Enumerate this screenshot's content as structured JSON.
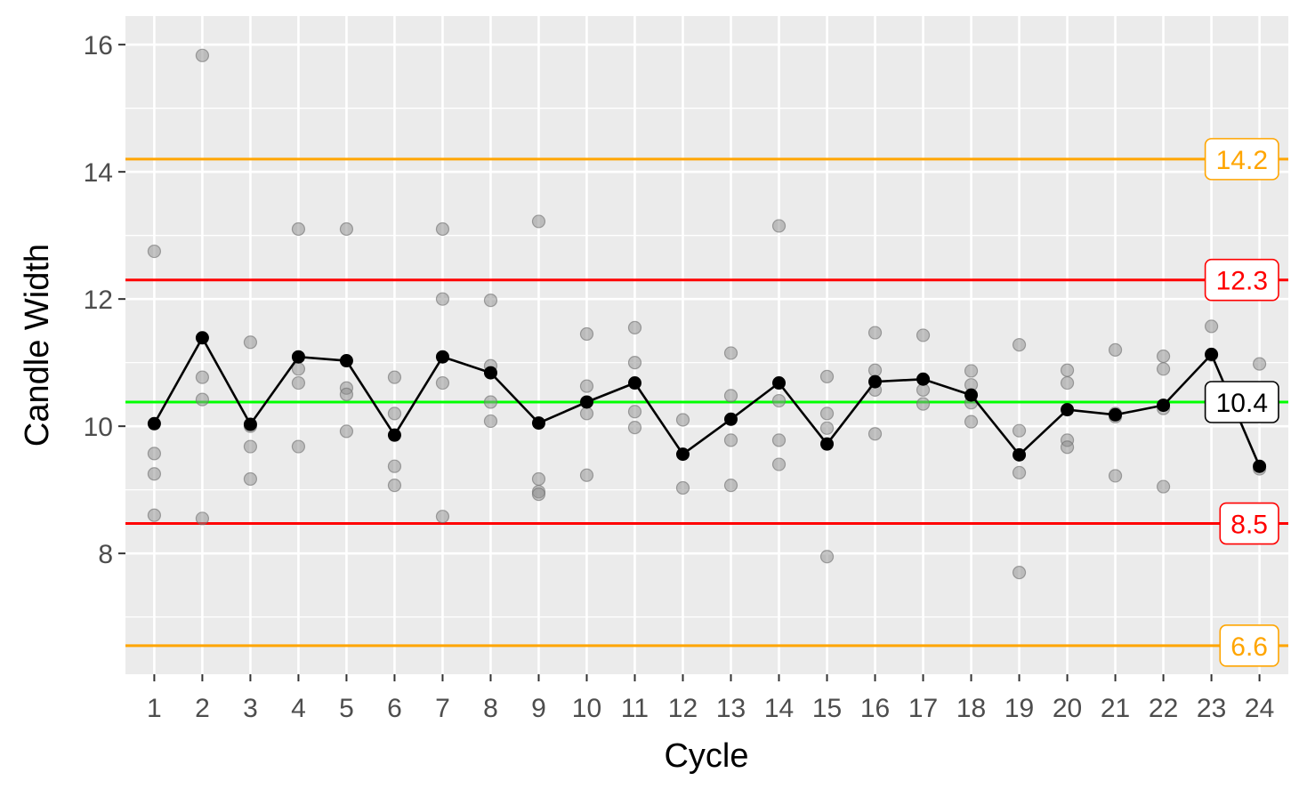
{
  "chart_data": {
    "type": "scatter",
    "xlabel": "Cycle",
    "ylabel": "Candle Width",
    "xlim": [
      0.4,
      24.6
    ],
    "ylim": [
      6.1,
      16.45
    ],
    "x_ticks": [
      1,
      2,
      3,
      4,
      5,
      6,
      7,
      8,
      9,
      10,
      11,
      12,
      13,
      14,
      15,
      16,
      17,
      18,
      19,
      20,
      21,
      22,
      23,
      24
    ],
    "y_ticks": [
      8,
      10,
      12,
      14,
      16
    ],
    "grid": true,
    "legend": "none",
    "series": [
      {
        "kind": "points",
        "color": "#8c8c8c",
        "points": [
          [
            1,
            12.75
          ],
          [
            1,
            9.57
          ],
          [
            1,
            9.25
          ],
          [
            1,
            8.6
          ],
          [
            2,
            15.83
          ],
          [
            2,
            10.77
          ],
          [
            2,
            10.42
          ],
          [
            2,
            8.55
          ],
          [
            3,
            11.32
          ],
          [
            3,
            10.0
          ],
          [
            3,
            9.68
          ],
          [
            3,
            9.17
          ],
          [
            4,
            13.1
          ],
          [
            4,
            10.9
          ],
          [
            4,
            10.68
          ],
          [
            4,
            9.68
          ],
          [
            5,
            13.1
          ],
          [
            5,
            10.6
          ],
          [
            5,
            10.5
          ],
          [
            5,
            9.92
          ],
          [
            6,
            10.77
          ],
          [
            6,
            10.2
          ],
          [
            6,
            9.37
          ],
          [
            6,
            9.07
          ],
          [
            7,
            13.1
          ],
          [
            7,
            12.0
          ],
          [
            7,
            10.68
          ],
          [
            7,
            8.58
          ],
          [
            8,
            11.98
          ],
          [
            8,
            10.95
          ],
          [
            8,
            10.38
          ],
          [
            8,
            10.08
          ],
          [
            9,
            13.22
          ],
          [
            9,
            9.17
          ],
          [
            9,
            8.97
          ],
          [
            9,
            8.93
          ],
          [
            10,
            11.45
          ],
          [
            10,
            10.63
          ],
          [
            10,
            10.2
          ],
          [
            10,
            9.23
          ],
          [
            11,
            11.55
          ],
          [
            11,
            11.0
          ],
          [
            11,
            10.23
          ],
          [
            11,
            9.98
          ],
          [
            12,
            10.1
          ],
          [
            12,
            9.03
          ],
          [
            13,
            11.15
          ],
          [
            13,
            10.48
          ],
          [
            13,
            9.78
          ],
          [
            13,
            9.07
          ],
          [
            14,
            13.15
          ],
          [
            14,
            10.4
          ],
          [
            14,
            9.78
          ],
          [
            14,
            9.4
          ],
          [
            15,
            10.78
          ],
          [
            15,
            10.2
          ],
          [
            15,
            9.97
          ],
          [
            15,
            7.95
          ],
          [
            16,
            11.47
          ],
          [
            16,
            10.88
          ],
          [
            16,
            10.57
          ],
          [
            16,
            9.88
          ],
          [
            17,
            11.43
          ],
          [
            17,
            10.57
          ],
          [
            17,
            10.35
          ],
          [
            18,
            10.87
          ],
          [
            18,
            10.65
          ],
          [
            18,
            10.37
          ],
          [
            18,
            10.07
          ],
          [
            19,
            11.28
          ],
          [
            19,
            9.93
          ],
          [
            19,
            9.27
          ],
          [
            19,
            7.7
          ],
          [
            20,
            10.88
          ],
          [
            20,
            10.68
          ],
          [
            20,
            9.78
          ],
          [
            20,
            9.67
          ],
          [
            21,
            11.2
          ],
          [
            21,
            10.2
          ],
          [
            21,
            10.15
          ],
          [
            21,
            9.22
          ],
          [
            22,
            11.1
          ],
          [
            22,
            10.9
          ],
          [
            22,
            10.28
          ],
          [
            22,
            9.05
          ],
          [
            23,
            12.25
          ],
          [
            23,
            11.57
          ],
          [
            23,
            11.12
          ],
          [
            24,
            10.98
          ],
          [
            24,
            9.33
          ],
          [
            24,
            8.65
          ],
          [
            24,
            8.57
          ]
        ]
      },
      {
        "kind": "line",
        "color": "#000000",
        "x": [
          1,
          2,
          3,
          4,
          5,
          6,
          7,
          8,
          9,
          10,
          11,
          12,
          13,
          14,
          15,
          16,
          17,
          18,
          19,
          20,
          21,
          22,
          23,
          24
        ],
        "values": [
          10.04,
          11.39,
          10.03,
          11.09,
          11.03,
          9.86,
          11.09,
          10.84,
          10.05,
          10.38,
          10.68,
          9.56,
          10.11,
          10.68,
          9.72,
          10.7,
          10.74,
          10.49,
          9.55,
          10.26,
          10.18,
          10.33,
          11.13,
          9.37
        ]
      }
    ],
    "reference_lines": [
      {
        "value": 14.2,
        "label": "14.2",
        "color": "#FFA500"
      },
      {
        "value": 12.3,
        "label": "12.3",
        "color": "#FF0000"
      },
      {
        "value": 10.38,
        "label": "10.4",
        "color": "#00FF00",
        "label_color": "#000000"
      },
      {
        "value": 8.47,
        "label": "8.5",
        "color": "#FF0000"
      },
      {
        "value": 6.55,
        "label": "6.6",
        "color": "#FFA500"
      }
    ],
    "colors": {
      "panel_background": "#EBEBEB",
      "grid": "#FFFFFF",
      "tick_text": "#4D4D4D"
    }
  }
}
